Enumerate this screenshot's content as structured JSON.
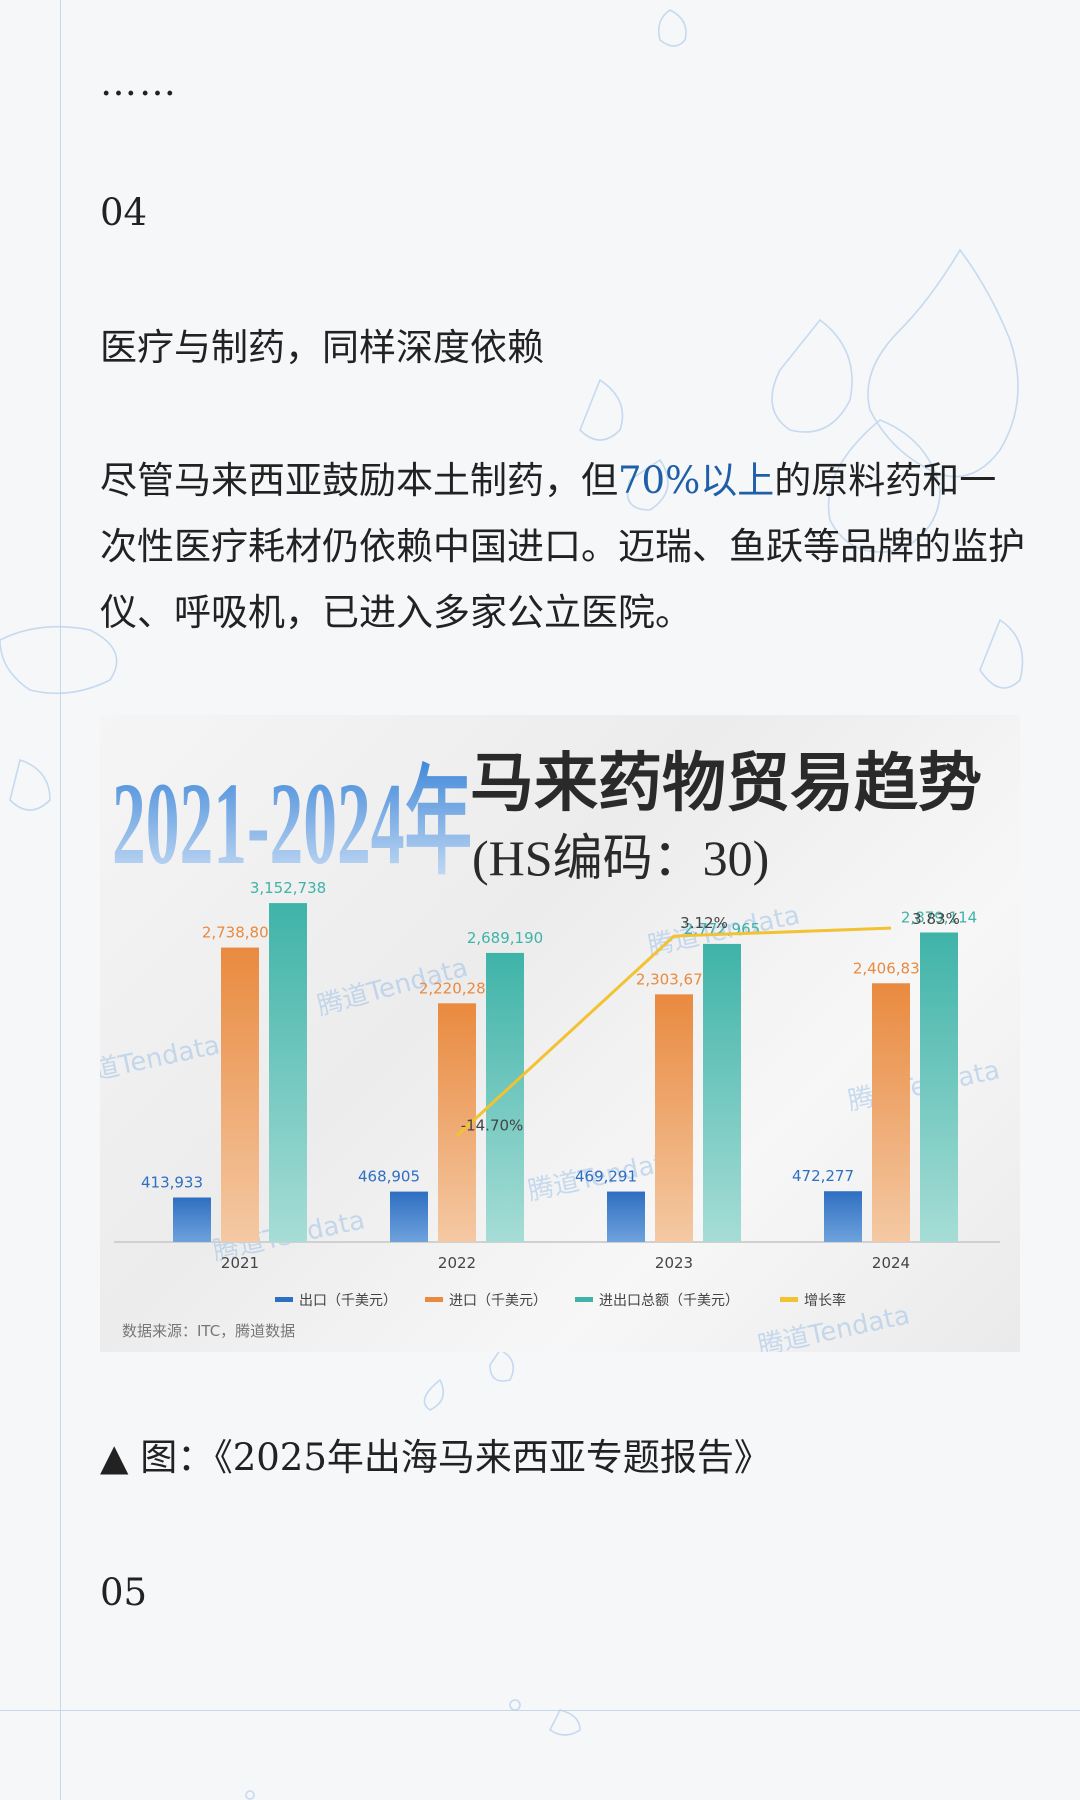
{
  "article": {
    "ellipsis": "……",
    "section_04": "04",
    "heading": "医疗与制药，同样深度依赖",
    "para_part1": "尽管马来西亚鼓励本土制药，但",
    "para_highlight": "70%以上",
    "para_part2": "的原料药和一次性医疗耗材仍依赖中国进口。迈瑞、鱼跃等品牌的监护仪、呼吸机，已进入多家公立医院。",
    "caption": "▲ 图：《2025年出海马来西亚专题报告》",
    "section_05": "05"
  },
  "colors": {
    "export": "#2f6fc1",
    "import": "#e98a3f",
    "total": "#3fb3a8",
    "growth": "#f2c232",
    "highlight": "#1f5fa8"
  },
  "chart_data": {
    "type": "bar",
    "title_years": "2021-2024年",
    "title_main": "马来药物贸易趋势",
    "subtitle": "(HS编码：30)",
    "categories": [
      "2021",
      "2022",
      "2023",
      "2024"
    ],
    "series": [
      {
        "name": "出口（千美元）",
        "values": [
          413933,
          468905,
          469291,
          472277
        ],
        "labels": [
          "413,933",
          "468,905",
          "469,291",
          "472,277"
        ]
      },
      {
        "name": "进口（千美元）",
        "values": [
          2738805,
          2220285,
          2303674,
          2406837
        ],
        "labels": [
          "2,738,805",
          "2,220,285",
          "2,303,674",
          "2,406,837"
        ]
      },
      {
        "name": "进出口总额（千美元）",
        "values": [
          3152738,
          2689190,
          2772965,
          2879114
        ],
        "labels": [
          "3,152,738",
          "2,689,190",
          "2,772,965",
          "2,879,114"
        ]
      }
    ],
    "line_series": {
      "name": "增长率",
      "categories": [
        "2022",
        "2023",
        "2024"
      ],
      "values": [
        -14.7,
        3.12,
        3.83
      ],
      "labels": [
        "-14.70%",
        "3.12%",
        "3.83%"
      ]
    },
    "ylim": [
      0,
      3600000
    ],
    "line_ylim": [
      -20,
      5
    ],
    "source": "数据来源：ITC，腾道数据",
    "watermark": "腾道Tendata",
    "grid": false,
    "legend_position": "bottom"
  }
}
